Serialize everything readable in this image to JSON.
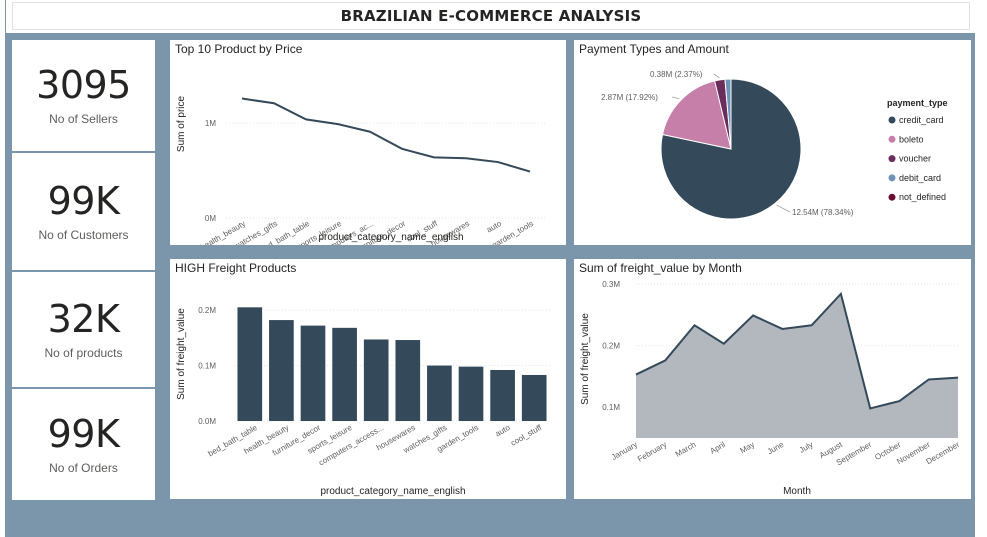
{
  "page_title": "BRAZILIAN E-COMMERCE ANALYSIS",
  "kpis": [
    {
      "value": "3095",
      "label": "No of Sellers"
    },
    {
      "value": "99K",
      "label": "No of Customers"
    },
    {
      "value": "32K",
      "label": "No of products"
    },
    {
      "value": "99K",
      "label": "No of Orders"
    }
  ],
  "colors": {
    "background": "#7b96ab",
    "dark_series": "#34495a",
    "area_fill": "#b3b8bf"
  },
  "chart_data": [
    {
      "type": "line",
      "title": "Top 10 Product by Price",
      "xlabel": "product_category_name_english",
      "ylabel": "Sum of price",
      "categories": [
        "health_beauty",
        "watches_gifts",
        "bed_bath_table",
        "sports_leisure",
        "computers_ac...",
        "furniture_decor",
        "cool_stuff",
        "housewares",
        "auto",
        "garden_tools"
      ],
      "values": [
        1.26,
        1.21,
        1.04,
        0.99,
        0.91,
        0.73,
        0.64,
        0.63,
        0.59,
        0.49
      ],
      "unit": "M",
      "y_ticks": [
        {
          "v": 0,
          "label": "0M"
        },
        {
          "v": 1,
          "label": "1M"
        }
      ],
      "ylim": [
        0,
        1.35
      ],
      "grid": true
    },
    {
      "type": "pie",
      "title": "Payment Types and Amount",
      "legend_title": "payment_type",
      "legend_position": "right",
      "slices": [
        {
          "name": "credit_card",
          "value": 12.54,
          "pct": 78.34,
          "color": "#34495a",
          "label": "12.54M (78.34%)"
        },
        {
          "name": "boleto",
          "value": 2.87,
          "pct": 17.92,
          "color": "#c67fa8",
          "label": "2.87M (17.92%)"
        },
        {
          "name": "voucher",
          "value": 0.38,
          "pct": 2.37,
          "color": "#6b2d5c",
          "label": "0.38M (2.37%)"
        },
        {
          "name": "debit_card",
          "value": 0.22,
          "pct": 1.37,
          "color": "#6f93b8",
          "label": ""
        },
        {
          "name": "not_defined",
          "value": 0.0,
          "pct": 0.0,
          "color": "#6a0d2e",
          "label": ""
        }
      ]
    },
    {
      "type": "bar",
      "title": "HIGH Freight Products",
      "xlabel": "product_category_name_english",
      "ylabel": "Sum of freight_value",
      "categories": [
        "bed_bath_table",
        "health_beauty",
        "furniture_decor",
        "sports_leisure",
        "computers_access...",
        "housewares",
        "watches_gifts",
        "garden_tools",
        "auto",
        "cool_stuff"
      ],
      "values": [
        0.205,
        0.182,
        0.172,
        0.168,
        0.147,
        0.146,
        0.1,
        0.098,
        0.092,
        0.083
      ],
      "unit": "M",
      "y_ticks": [
        {
          "v": 0,
          "label": "0.0M"
        },
        {
          "v": 0.1,
          "label": "0.1M"
        },
        {
          "v": 0.2,
          "label": "0.2M"
        }
      ],
      "ylim": [
        0,
        0.22
      ],
      "grid": true
    },
    {
      "type": "area",
      "title": "Sum of freight_value by Month",
      "xlabel": "Month",
      "ylabel": "Sum of freight_value",
      "categories": [
        "January",
        "February",
        "March",
        "April",
        "May",
        "June",
        "July",
        "August",
        "September",
        "October",
        "November",
        "December"
      ],
      "values": [
        0.153,
        0.176,
        0.233,
        0.203,
        0.249,
        0.227,
        0.233,
        0.284,
        0.098,
        0.11,
        0.145,
        0.148
      ],
      "unit": "M",
      "y_ticks": [
        {
          "v": 0.1,
          "label": "0.1M"
        },
        {
          "v": 0.2,
          "label": "0.2M"
        },
        {
          "v": 0.3,
          "label": "0.3M"
        }
      ],
      "ylim": [
        0.05,
        0.3
      ],
      "grid": true
    }
  ]
}
